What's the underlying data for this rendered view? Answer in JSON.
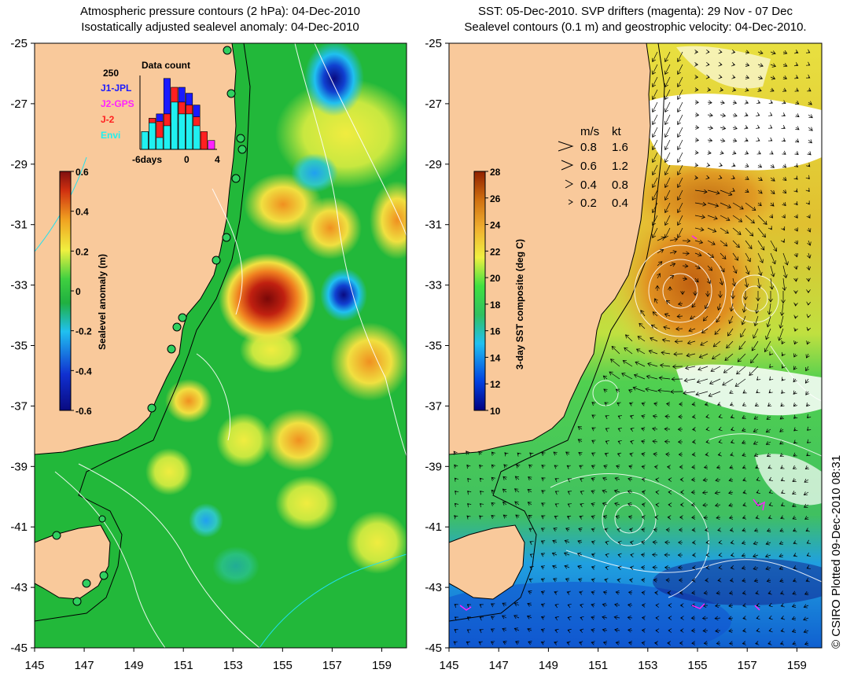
{
  "left_panel": {
    "title_line1": "Atmospheric pressure contours (2 hPa): 04-Dec-2010",
    "title_line2": "Isostatically adjusted sealevel anomaly: 04-Dec-2010",
    "colorbar": {
      "label": "Sealevel anomaly (m)",
      "ticks": [
        "0.6",
        "0.4",
        "0.2",
        "0",
        "-0.2",
        "-0.4",
        "-0.6"
      ]
    },
    "inset": {
      "title": "Data count",
      "ymax_label": "250",
      "x_ticks": [
        "-6days",
        "0",
        "4"
      ],
      "legend": [
        {
          "name": "J1-JPL",
          "color": "#1a1aff"
        },
        {
          "name": "J2-GPS",
          "color": "#ff22ff"
        },
        {
          "name": "J-2",
          "color": "#ff2020"
        },
        {
          "name": "Envi",
          "color": "#20f0f0"
        }
      ]
    }
  },
  "right_panel": {
    "title_line1": "SST: 05-Dec-2010. SVP drifters (magenta): 29 Nov - 07 Dec",
    "title_line2": "Sealevel contours (0.1 m) and geostrophic velocity: 04-Dec-2010.",
    "colorbar": {
      "label": "3-day SST composite (deg C)",
      "ticks": [
        "28",
        "26",
        "24",
        "22",
        "20",
        "18",
        "16",
        "14",
        "12",
        "10"
      ]
    },
    "velocity_key": {
      "unit_ms": "m/s",
      "unit_kt": "kt",
      "rows": [
        {
          "ms": "0.8",
          "kt": "1.6"
        },
        {
          "ms": "0.6",
          "kt": "1.2"
        },
        {
          "ms": "0.4",
          "kt": "0.8"
        },
        {
          "ms": "0.2",
          "kt": "0.4"
        }
      ]
    }
  },
  "lat_ticks": [
    "-25",
    "-27",
    "-29",
    "-31",
    "-33",
    "-35",
    "-37",
    "-39",
    "-41",
    "-43",
    "-45"
  ],
  "lon_ticks": [
    "145",
    "147",
    "149",
    "151",
    "153",
    "155",
    "157",
    "159"
  ],
  "credit": "© CSIRO Plotted 09-Dec-2010 08:31",
  "colors": {
    "land": "#f9c99b",
    "sla_ramp": [
      "#0a0a80",
      "#1030d0",
      "#20c0f0",
      "#20b040",
      "#30d040",
      "#f0f040",
      "#f0a020",
      "#e04010",
      "#901010"
    ],
    "sst_ramp": [
      "#000080",
      "#0050e0",
      "#20c0f0",
      "#30c060",
      "#40e040",
      "#f0f040",
      "#f0b030",
      "#d07010",
      "#902000"
    ]
  },
  "chart_data": [
    {
      "type": "bar",
      "title": "Data count",
      "categories": [
        "-6",
        "-5",
        "-4",
        "-3",
        "-2",
        "-1",
        "0",
        "1",
        "2",
        "3"
      ],
      "series": [
        {
          "name": "J1-JPL",
          "values": [
            60,
            105,
            120,
            240,
            90,
            210,
            190,
            150,
            0,
            0
          ]
        },
        {
          "name": "J2-GPS",
          "values": [
            0,
            0,
            0,
            0,
            0,
            0,
            0,
            0,
            0,
            30
          ]
        },
        {
          "name": "J-2",
          "values": [
            60,
            105,
            95,
            120,
            210,
            160,
            150,
            110,
            60,
            0
          ]
        },
        {
          "name": "Envi",
          "values": [
            60,
            90,
            40,
            80,
            160,
            120,
            120,
            80,
            0,
            0
          ]
        }
      ],
      "ylim": [
        0,
        250
      ]
    }
  ]
}
